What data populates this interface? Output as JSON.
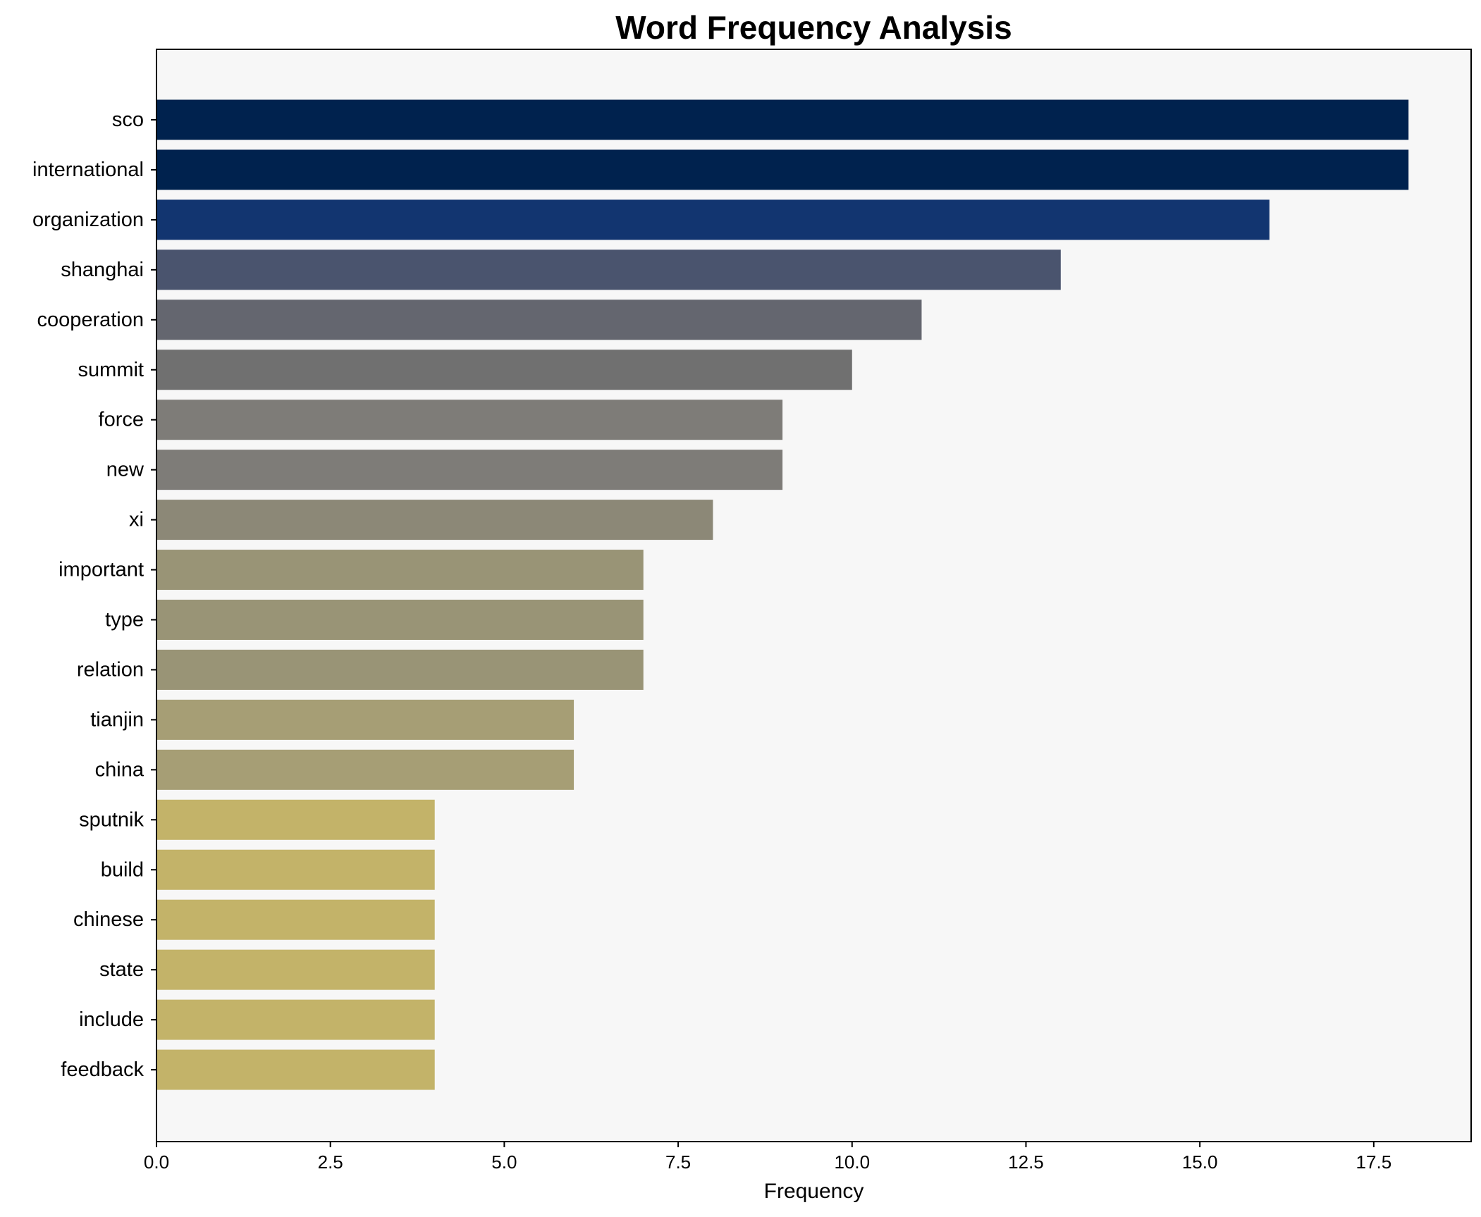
{
  "chart_data": {
    "type": "bar",
    "orientation": "horizontal",
    "title": "Word Frequency Analysis",
    "xlabel": "Frequency",
    "ylabel": "",
    "xlim": [
      0,
      18.9
    ],
    "xticks": [
      "0.0",
      "2.5",
      "5.0",
      "7.5",
      "10.0",
      "12.5",
      "15.0",
      "17.5"
    ],
    "grid": false,
    "legend": "none",
    "background_color": "#f7f7f7",
    "colormap": "cividis",
    "categories": [
      "sco",
      "international",
      "organization",
      "shanghai",
      "cooperation",
      "summit",
      "force",
      "new",
      "xi",
      "important",
      "type",
      "relation",
      "tianjin",
      "china",
      "sputnik",
      "build",
      "chinese",
      "state",
      "include",
      "feedback"
    ],
    "values": [
      18,
      18,
      16,
      13,
      11,
      10,
      9,
      9,
      8,
      7,
      7,
      7,
      6,
      6,
      4,
      4,
      4,
      4,
      4,
      4
    ],
    "colors": [
      "#00224e",
      "#00224e",
      "#123570",
      "#4a546e",
      "#64666f",
      "#707070",
      "#7e7c78",
      "#7e7c78",
      "#8c8877",
      "#999476",
      "#999476",
      "#999476",
      "#a69e75",
      "#a69e75",
      "#c3b369",
      "#c3b369",
      "#c3b369",
      "#c3b369",
      "#c3b369",
      "#c3b369"
    ]
  }
}
